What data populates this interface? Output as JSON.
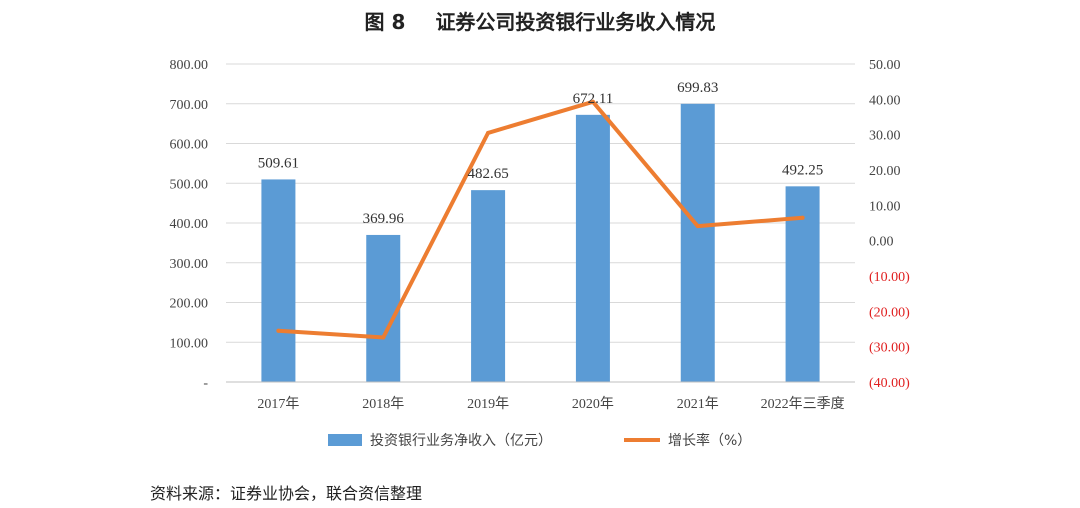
{
  "title_prefix": "图 8",
  "title_text": "证券公司投资银行业务收入情况",
  "source_note": "资料来源：证券业协会，联合资信整理",
  "colors": {
    "bar": "#5b9bd5",
    "line": "#ed7d31",
    "negative_tick": "#e02020",
    "grid": "#d9d9d9"
  },
  "chart_data": {
    "type": "bar",
    "title": "证券公司投资银行业务收入情况",
    "categories": [
      "2017年",
      "2018年",
      "2019年",
      "2020年",
      "2021年",
      "2022年三季度"
    ],
    "series": [
      {
        "name": "投资银行业务净收入（亿元）",
        "type": "bar",
        "axis": "left",
        "values": [
          509.61,
          369.96,
          482.65,
          672.11,
          699.83,
          492.25
        ],
        "labels": [
          "509.61",
          "369.96",
          "482.65",
          "672.11",
          "699.83",
          "492.25"
        ]
      },
      {
        "name": "增长率（%）",
        "type": "line",
        "axis": "right",
        "values": [
          -25.5,
          -27.4,
          30.5,
          39.3,
          4.1,
          6.5
        ]
      }
    ],
    "y_left": {
      "lim": [
        0,
        800
      ],
      "ticks": [
        0,
        100,
        200,
        300,
        400,
        500,
        600,
        700,
        800
      ],
      "tick_labels": [
        "-",
        "100.00",
        "200.00",
        "300.00",
        "400.00",
        "500.00",
        "600.00",
        "700.00",
        "800.00"
      ]
    },
    "y_right": {
      "lim": [
        -40,
        50
      ],
      "ticks": [
        -40,
        -30,
        -20,
        -10,
        0,
        10,
        20,
        30,
        40,
        50
      ],
      "tick_labels": [
        "(40.00)",
        "(30.00)",
        "(20.00)",
        "(10.00)",
        "0.00",
        "10.00",
        "20.00",
        "30.00",
        "40.00",
        "50.00"
      ]
    },
    "grid": true,
    "legend": "bottom"
  }
}
